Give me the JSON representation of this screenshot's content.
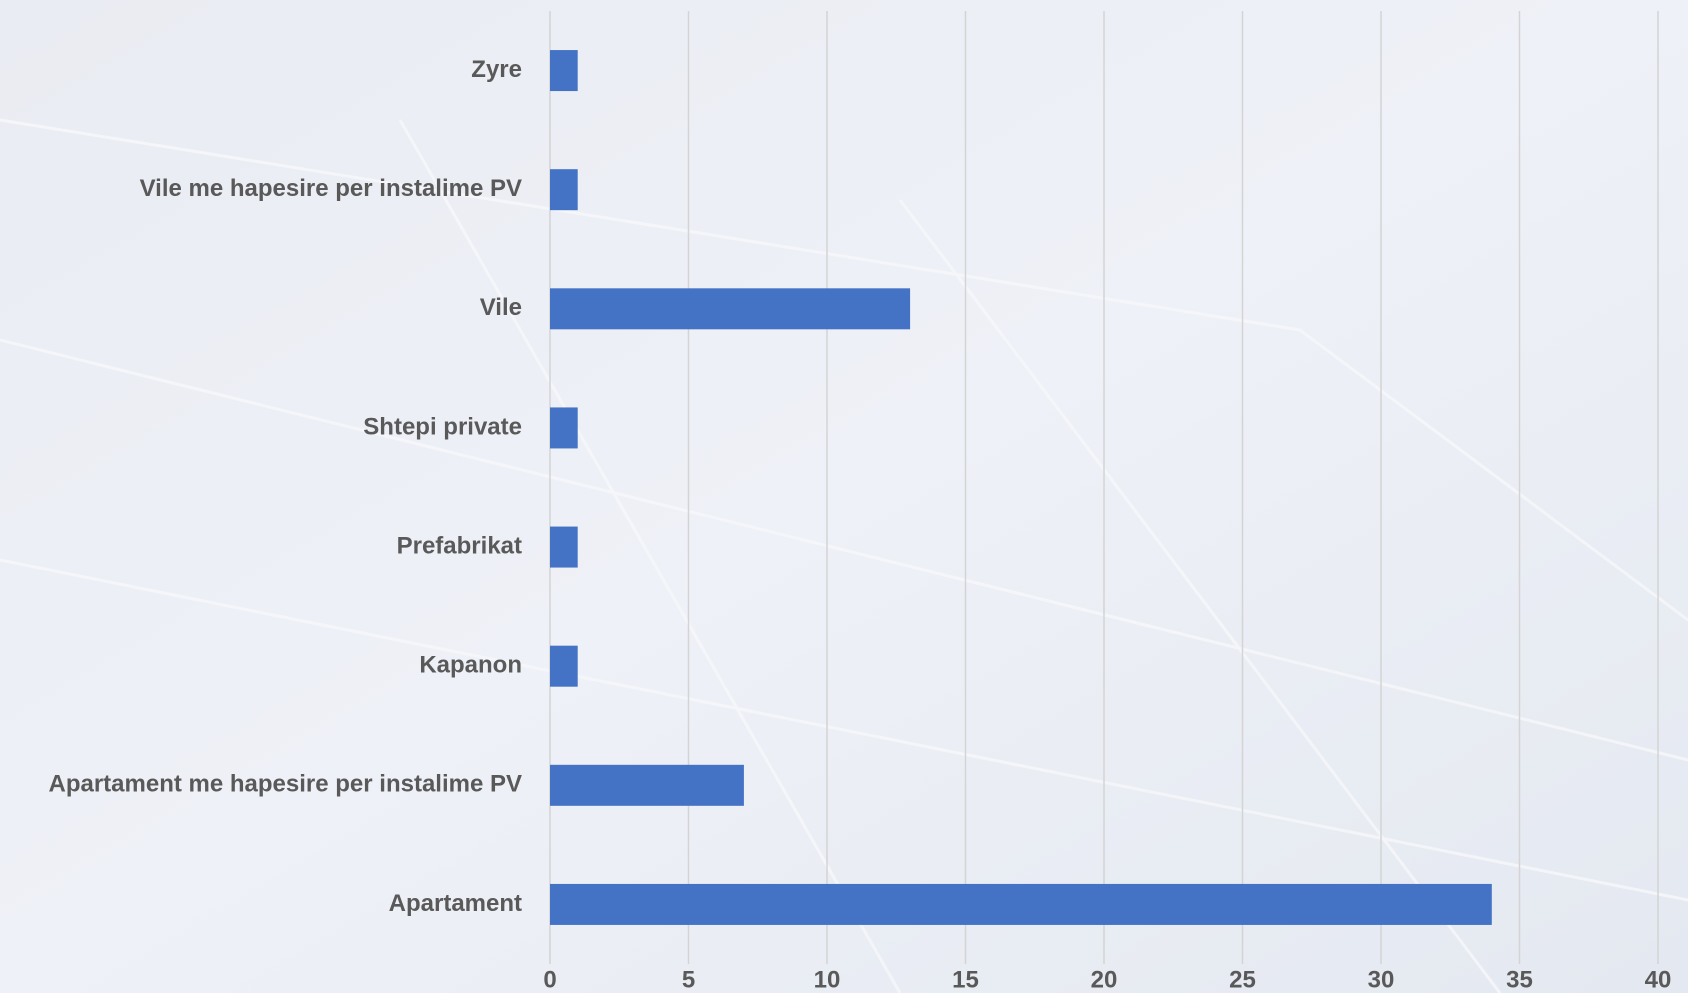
{
  "chart_data": {
    "type": "bar",
    "orientation": "horizontal",
    "categories": [
      "Zyre",
      "Vile me hapesire per instalime PV",
      "Vile",
      "Shtepi private",
      "Prefabrikat",
      "Kapanon",
      "Apartament me hapesire per instalime PV",
      "Apartament"
    ],
    "values": [
      1,
      1,
      13,
      1,
      1,
      1,
      7,
      34
    ],
    "color": "#4472c4",
    "xlim": [
      0,
      40
    ],
    "xticks": [
      0,
      5,
      10,
      15,
      20,
      25,
      30,
      35,
      40
    ],
    "grid": true
  }
}
